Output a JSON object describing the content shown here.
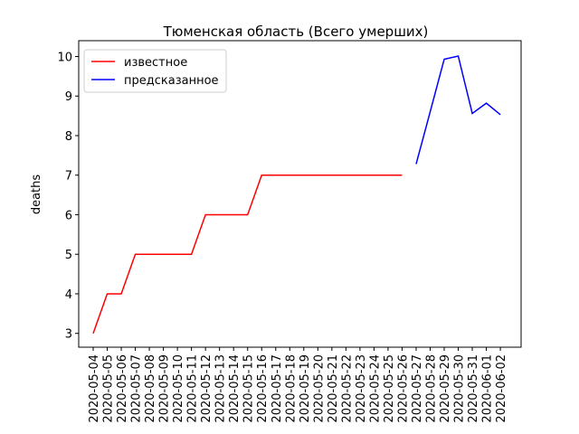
{
  "chart_data": {
    "type": "line",
    "title": "Тюменская область (Всего умерших)",
    "y_label": "deaths",
    "categories": [
      "2020-05-04",
      "2020-05-05",
      "2020-05-06",
      "2020-05-07",
      "2020-05-08",
      "2020-05-09",
      "2020-05-10",
      "2020-05-11",
      "2020-05-12",
      "2020-05-13",
      "2020-05-14",
      "2020-05-15",
      "2020-05-16",
      "2020-05-17",
      "2020-05-18",
      "2020-05-19",
      "2020-05-20",
      "2020-05-21",
      "2020-05-22",
      "2020-05-23",
      "2020-05-24",
      "2020-05-25",
      "2020-05-26",
      "2020-05-27",
      "2020-05-28",
      "2020-05-29",
      "2020-05-30",
      "2020-05-31",
      "2020-06-01",
      "2020-06-02"
    ],
    "series": [
      {
        "name": "известное",
        "color": "#ff0000",
        "values": [
          3,
          4,
          4,
          5,
          5,
          5,
          5,
          5,
          6,
          6,
          6,
          6,
          7,
          7,
          7,
          7,
          7,
          7,
          7,
          7,
          7,
          7,
          7,
          null,
          null,
          null,
          null,
          null,
          null,
          null
        ]
      },
      {
        "name": "предсказанное",
        "color": "#0000ff",
        "values": [
          null,
          null,
          null,
          null,
          null,
          null,
          null,
          null,
          null,
          null,
          null,
          null,
          null,
          null,
          null,
          null,
          null,
          null,
          null,
          null,
          null,
          null,
          null,
          7.28,
          8.6,
          9.93,
          10.01,
          8.56,
          8.82,
          8.53
        ]
      }
    ],
    "ylim": [
      2.65,
      10.4
    ],
    "yticks": [
      3,
      4,
      5,
      6,
      7,
      8,
      9,
      10
    ],
    "legend": "upper left"
  }
}
